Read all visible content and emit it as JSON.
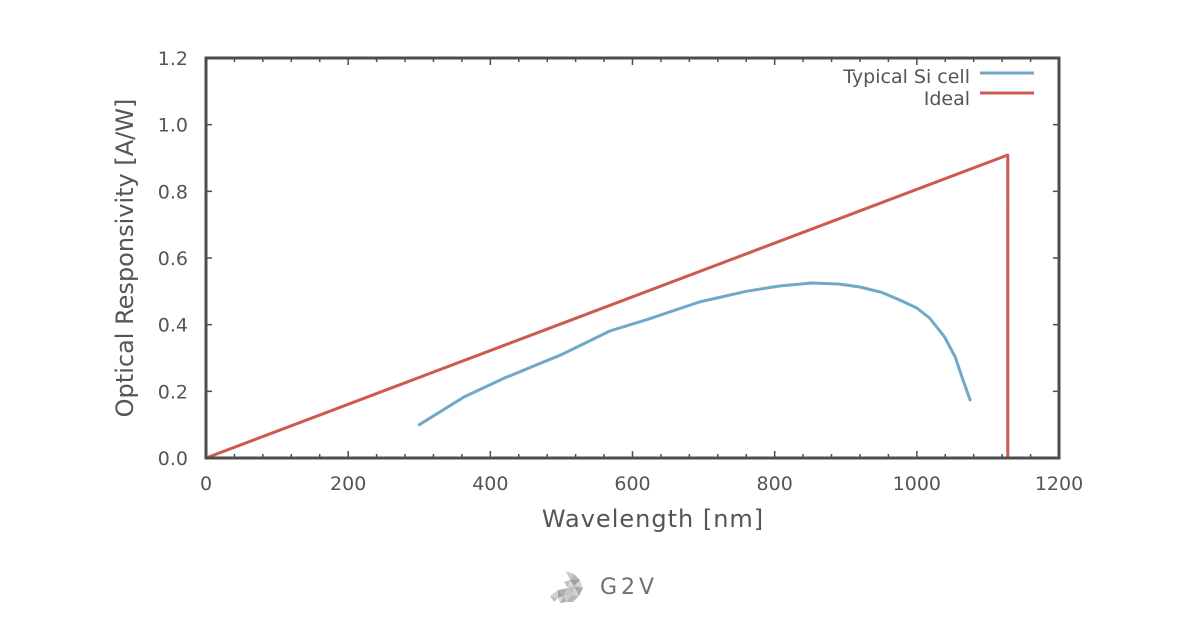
{
  "chart_data": {
    "type": "line",
    "title": "",
    "xlabel": "Wavelength [nm]",
    "ylabel": "Optical Responsivity [A/W]",
    "xlim": [
      0,
      1200
    ],
    "ylim": [
      0,
      1.2
    ],
    "xticks": [
      0,
      200,
      400,
      600,
      800,
      1000,
      1200
    ],
    "xtick_labels": [
      "0",
      "200",
      "400",
      "600",
      "800",
      "1000",
      "1200"
    ],
    "yticks": [
      0,
      0.2,
      0.4,
      0.6,
      0.8,
      1.0,
      1.2
    ],
    "ytick_labels": [
      "0.0",
      "0.2",
      "0.4",
      "0.6",
      "0.8",
      "1.0",
      "1.2"
    ],
    "x_minor_step": 40,
    "grid": false,
    "legend_position": "top-right",
    "series": [
      {
        "name": "Typical Si cell",
        "color": "#6fa8c8",
        "x": [
          300,
          363,
          420,
          500,
          568,
          620,
          694,
          760,
          807,
          852,
          890,
          920,
          950,
          976,
          1000,
          1018,
          1039,
          1054,
          1064,
          1075
        ],
        "y": [
          0.1,
          0.183,
          0.24,
          0.31,
          0.381,
          0.415,
          0.468,
          0.5,
          0.516,
          0.525,
          0.522,
          0.513,
          0.497,
          0.474,
          0.45,
          0.42,
          0.363,
          0.303,
          0.24,
          0.174
        ]
      },
      {
        "name": "Ideal",
        "color": "#cc5a50",
        "x": [
          0,
          1128,
          1128
        ],
        "y": [
          0,
          0.909,
          0
        ]
      }
    ]
  },
  "logo": {
    "text": "G2V"
  }
}
